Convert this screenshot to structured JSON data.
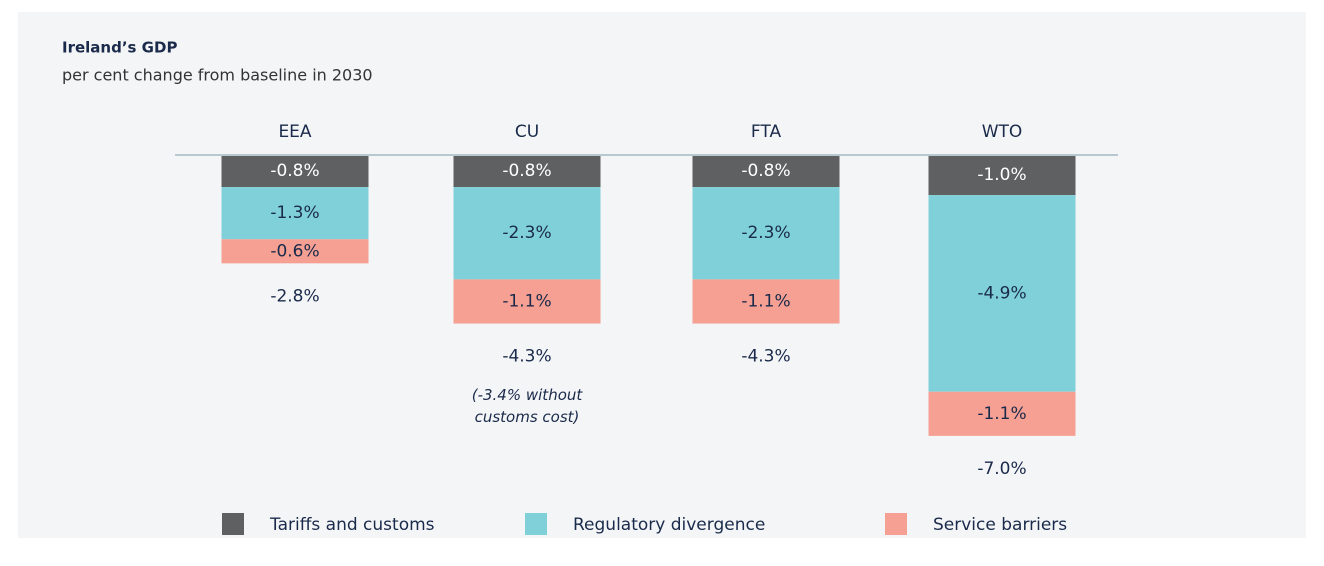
{
  "chart_data": {
    "type": "stacked_bar",
    "title": "Ireland’s GDP",
    "subtitle": "per cent change from baseline in 2030",
    "categories": [
      "EEA",
      "CU",
      "FTA",
      "WTO"
    ],
    "series": [
      {
        "name": "Tariffs and customs",
        "color": "#5f6062",
        "values": [
          -0.8,
          -0.8,
          -0.8,
          -1.0
        ],
        "value_labels": [
          "-0.8%",
          "-0.8%",
          "-0.8%",
          "-1.0%"
        ]
      },
      {
        "name": "Regulatory divergence",
        "color": "#7fd0d8",
        "values": [
          -1.3,
          -2.3,
          -2.3,
          -4.9
        ],
        "value_labels": [
          "-1.3%",
          "-2.3%",
          "-2.3%",
          "-4.9%"
        ]
      },
      {
        "name": "Service barriers",
        "color": "#f5a093",
        "values": [
          -0.6,
          -1.1,
          -1.1,
          -1.1
        ],
        "value_labels": [
          "-0.6%",
          "-1.1%",
          "-1.1%",
          "-1.1%"
        ]
      }
    ],
    "totals": [
      -2.8,
      -4.3,
      -4.3,
      -7.0
    ],
    "total_labels": [
      "-2.8%",
      "-4.3%",
      "-4.3%",
      "-7.0%"
    ],
    "annotation": {
      "category": "CU",
      "text": "(-3.4% without customs cost)"
    },
    "ylim": [
      -8,
      0
    ]
  }
}
